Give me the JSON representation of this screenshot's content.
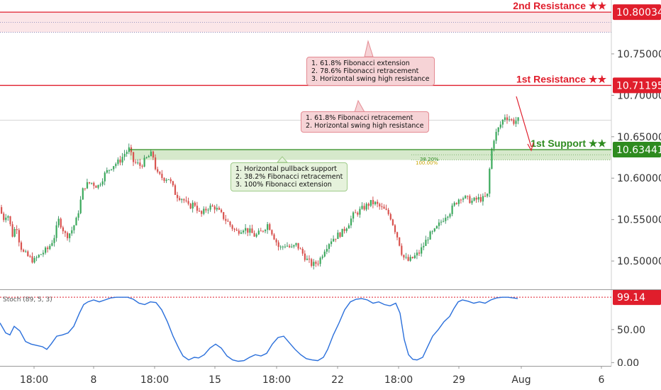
{
  "chart_data": {
    "type": "candlestick",
    "price_axis": {
      "ticks": [
        "10.75000",
        "10.70000",
        "10.65000",
        "10.60000",
        "10.55000",
        "10.50000"
      ],
      "ylim": [
        10.465,
        10.815
      ]
    },
    "time_axis": {
      "ticks": [
        "18:00",
        "8",
        "18:00",
        "15",
        "18:00",
        "22",
        "18:00",
        "29",
        "Aug",
        "6"
      ]
    },
    "levels": [
      {
        "label": "2nd Resistance ★★",
        "value": "10.80034",
        "color": "#e01e2c",
        "zone_low": 10.776
      },
      {
        "label": "1st Resistance ★★",
        "value": "10.71195",
        "color": "#e01e2c"
      },
      {
        "label": "1st Support ★★",
        "value": "10.63441",
        "color": "#2e8b1f",
        "zone_low": 10.622
      }
    ],
    "fib_labels": [
      "38.20%",
      "100.00%"
    ],
    "price_path": [
      [
        0,
        10.565
      ],
      [
        8,
        10.55
      ],
      [
        12,
        10.56
      ],
      [
        20,
        10.53
      ],
      [
        25,
        10.545
      ],
      [
        30,
        10.52
      ],
      [
        35,
        10.51
      ],
      [
        42,
        10.505
      ],
      [
        50,
        10.5
      ],
      [
        55,
        10.505
      ],
      [
        62,
        10.51
      ],
      [
        70,
        10.515
      ],
      [
        78,
        10.528
      ],
      [
        85,
        10.55
      ],
      [
        95,
        10.53
      ],
      [
        102,
        10.535
      ],
      [
        110,
        10.55
      ],
      [
        115,
        10.57
      ],
      [
        120,
        10.59
      ],
      [
        130,
        10.595
      ],
      [
        140,
        10.59
      ],
      [
        150,
        10.605
      ],
      [
        160,
        10.615
      ],
      [
        170,
        10.62
      ],
      [
        178,
        10.63
      ],
      [
        184,
        10.635
      ],
      [
        190,
        10.62
      ],
      [
        200,
        10.615
      ],
      [
        210,
        10.625
      ],
      [
        217,
        10.63
      ],
      [
        223,
        10.605
      ],
      [
        232,
        10.6
      ],
      [
        240,
        10.6
      ],
      [
        250,
        10.58
      ],
      [
        260,
        10.575
      ],
      [
        268,
        10.565
      ],
      [
        276,
        10.57
      ],
      [
        285,
        10.555
      ],
      [
        295,
        10.565
      ],
      [
        305,
        10.565
      ],
      [
        315,
        10.555
      ],
      [
        325,
        10.545
      ],
      [
        335,
        10.535
      ],
      [
        345,
        10.54
      ],
      [
        355,
        10.535
      ],
      [
        362,
        10.53
      ],
      [
        370,
        10.535
      ],
      [
        380,
        10.545
      ],
      [
        388,
        10.53
      ],
      [
        396,
        10.515
      ],
      [
        405,
        10.52
      ],
      [
        413,
        10.515
      ],
      [
        420,
        10.52
      ],
      [
        428,
        10.51
      ],
      [
        436,
        10.5
      ],
      [
        443,
        10.495
      ],
      [
        452,
        10.5
      ],
      [
        460,
        10.515
      ],
      [
        468,
        10.525
      ],
      [
        476,
        10.53
      ],
      [
        485,
        10.535
      ],
      [
        493,
        10.545
      ],
      [
        500,
        10.555
      ],
      [
        508,
        10.56
      ],
      [
        516,
        10.565
      ],
      [
        524,
        10.57
      ],
      [
        530,
        10.57
      ],
      [
        538,
        10.565
      ],
      [
        546,
        10.56
      ],
      [
        552,
        10.555
      ],
      [
        558,
        10.54
      ],
      [
        564,
        10.525
      ],
      [
        570,
        10.505
      ],
      [
        578,
        10.5
      ],
      [
        586,
        10.505
      ],
      [
        593,
        10.51
      ],
      [
        600,
        10.52
      ],
      [
        606,
        10.53
      ],
      [
        614,
        10.535
      ],
      [
        622,
        10.545
      ],
      [
        630,
        10.555
      ],
      [
        637,
        10.56
      ],
      [
        644,
        10.57
      ],
      [
        652,
        10.578
      ],
      [
        660,
        10.575
      ],
      [
        668,
        10.572
      ],
      [
        676,
        10.575
      ],
      [
        684,
        10.575
      ],
      [
        690,
        10.58
      ],
      [
        693,
        10.62
      ],
      [
        697,
        10.645
      ],
      [
        702,
        10.655
      ],
      [
        708,
        10.665
      ],
      [
        714,
        10.675
      ],
      [
        720,
        10.672
      ],
      [
        726,
        10.668
      ],
      [
        731,
        10.67
      ]
    ],
    "stochastic": {
      "title": "Stoch (89, 5, 3)",
      "value": "99.14",
      "ticks": [
        "50.00",
        "0.00"
      ],
      "ylim": [
        -5,
        110
      ],
      "path": [
        [
          0,
          60
        ],
        [
          8,
          45
        ],
        [
          14,
          42
        ],
        [
          20,
          55
        ],
        [
          28,
          48
        ],
        [
          36,
          32
        ],
        [
          44,
          28
        ],
        [
          52,
          26
        ],
        [
          60,
          24
        ],
        [
          66,
          20
        ],
        [
          72,
          28
        ],
        [
          80,
          40
        ],
        [
          88,
          42
        ],
        [
          96,
          45
        ],
        [
          104,
          55
        ],
        [
          112,
          75
        ],
        [
          118,
          88
        ],
        [
          124,
          92
        ],
        [
          132,
          95
        ],
        [
          140,
          92
        ],
        [
          148,
          95
        ],
        [
          156,
          98
        ],
        [
          164,
          99
        ],
        [
          172,
          99
        ],
        [
          180,
          99
        ],
        [
          188,
          96
        ],
        [
          196,
          90
        ],
        [
          204,
          88
        ],
        [
          212,
          92
        ],
        [
          220,
          91
        ],
        [
          228,
          80
        ],
        [
          236,
          62
        ],
        [
          244,
          40
        ],
        [
          252,
          22
        ],
        [
          258,
          10
        ],
        [
          266,
          4
        ],
        [
          274,
          8
        ],
        [
          280,
          7
        ],
        [
          288,
          12
        ],
        [
          296,
          22
        ],
        [
          304,
          28
        ],
        [
          312,
          22
        ],
        [
          320,
          10
        ],
        [
          328,
          4
        ],
        [
          336,
          2
        ],
        [
          344,
          3
        ],
        [
          352,
          8
        ],
        [
          360,
          12
        ],
        [
          368,
          10
        ],
        [
          376,
          14
        ],
        [
          384,
          28
        ],
        [
          392,
          38
        ],
        [
          400,
          40
        ],
        [
          408,
          30
        ],
        [
          416,
          20
        ],
        [
          424,
          12
        ],
        [
          432,
          6
        ],
        [
          440,
          4
        ],
        [
          448,
          3
        ],
        [
          456,
          8
        ],
        [
          462,
          20
        ],
        [
          470,
          42
        ],
        [
          478,
          60
        ],
        [
          486,
          80
        ],
        [
          494,
          92
        ],
        [
          502,
          96
        ],
        [
          510,
          97
        ],
        [
          518,
          95
        ],
        [
          526,
          90
        ],
        [
          534,
          92
        ],
        [
          542,
          88
        ],
        [
          550,
          86
        ],
        [
          558,
          90
        ],
        [
          564,
          75
        ],
        [
          570,
          35
        ],
        [
          576,
          12
        ],
        [
          582,
          5
        ],
        [
          588,
          4
        ],
        [
          596,
          8
        ],
        [
          602,
          22
        ],
        [
          610,
          40
        ],
        [
          618,
          50
        ],
        [
          626,
          62
        ],
        [
          634,
          70
        ],
        [
          640,
          82
        ],
        [
          646,
          92
        ],
        [
          652,
          95
        ],
        [
          660,
          93
        ],
        [
          668,
          90
        ],
        [
          676,
          92
        ],
        [
          684,
          90
        ],
        [
          692,
          95
        ],
        [
          700,
          98
        ],
        [
          708,
          99
        ],
        [
          716,
          99
        ],
        [
          724,
          98
        ],
        [
          730,
          97
        ]
      ]
    },
    "annotations": [
      {
        "lines": [
          "1. 61.8% Fibonacci extension",
          "2. 78.6% Fibonacci retracement",
          "3. Horizontal swing high resistance"
        ]
      },
      {
        "lines": [
          "1. 61.8% Fibonacci retracement",
          "2. Horizontal swing high resistance"
        ]
      },
      {
        "lines": [
          "1. Horizontal pullback support",
          "2. 38.2% Fibonacci retracement",
          "3. 100% Fibonacci extension"
        ]
      }
    ]
  }
}
